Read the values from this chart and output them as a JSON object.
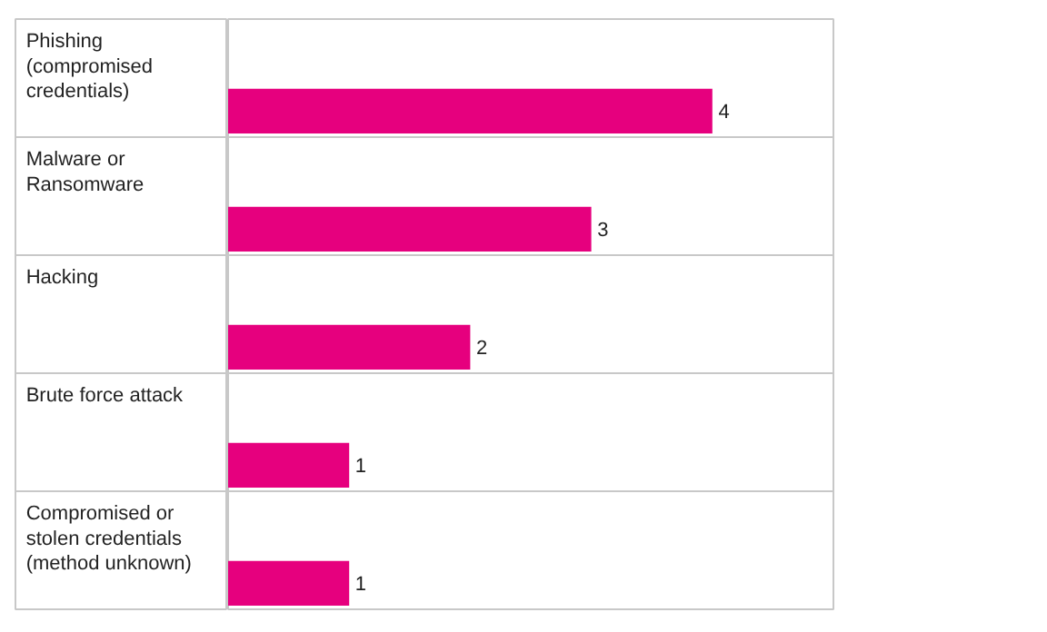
{
  "chart_data": {
    "type": "bar",
    "orientation": "horizontal",
    "categories": [
      "Phishing (compromised credentials)",
      "Malware or Ransomware",
      "Hacking",
      "Brute force attack",
      "Compromised or stolen credentials (method unknown)"
    ],
    "values": [
      4,
      3,
      2,
      1,
      1
    ],
    "color": "#e6007e",
    "xlim": [
      0,
      5
    ],
    "data_labels": true,
    "grid": "y",
    "tick_labels": "y"
  }
}
